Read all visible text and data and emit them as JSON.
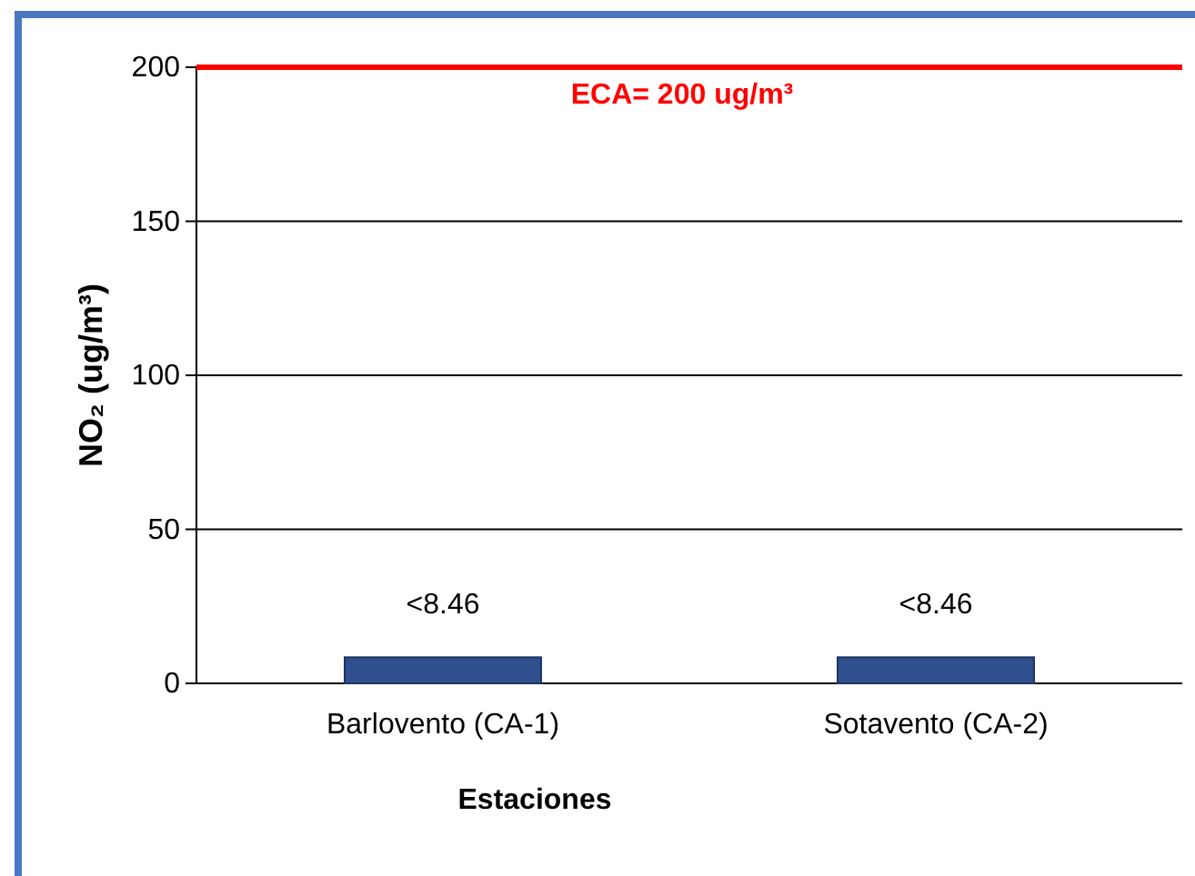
{
  "chart_data": {
    "type": "bar",
    "xlabel": "Estaciones",
    "ylabel": "NO₂ (ug/m³)",
    "categories": [
      "Barlovento (CA-1)",
      "Sotavento (CA-2)"
    ],
    "values": [
      8.46,
      8.46
    ],
    "value_labels": [
      "<8.46",
      "<8.46"
    ],
    "color": "#2f4f8f",
    "ylim": [
      0,
      200
    ],
    "yticks": [
      0,
      50,
      100,
      150,
      200
    ],
    "grid": "y",
    "ref_lines": [
      {
        "axis": "y",
        "value": 200,
        "label": "ECA= 200 ug/m³",
        "color": "#ff0000"
      }
    ]
  }
}
